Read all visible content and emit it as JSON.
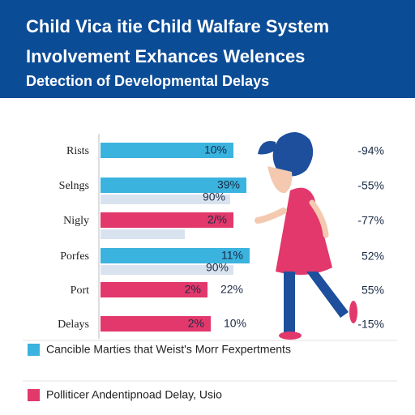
{
  "chart_data": {
    "type": "bar",
    "title": "Child Vica itie Child Walfare System",
    "subtitle": "Involvement Exhances Welences",
    "subtitle2": "Detection of Developmental Delays",
    "categories": [
      "Rists",
      "Selngs",
      "Nigly",
      "Porfes",
      "Port",
      "Delays"
    ],
    "xlim": [
      0,
      100
    ],
    "series": [
      {
        "values": [
          82,
          90,
          82,
          92,
          66,
          68
        ],
        "colors": [
          "#3bb3df",
          "#3bb3df",
          "#e2386c",
          "#3bb3df",
          "#e2386c",
          "#e2386c"
        ],
        "labels": [
          "10%",
          "39%",
          "2/%",
          "11%",
          "2%",
          "2%"
        ]
      },
      {
        "values": [
          null,
          80,
          52,
          82,
          null,
          null
        ],
        "color": "#d9e3f0",
        "labels": [
          null,
          "90%",
          null,
          "90%",
          "22%",
          "10%"
        ]
      }
    ],
    "side_labels": [
      "-94%",
      "-55%",
      "-77%",
      "52%",
      "55%",
      "-15%"
    ],
    "legend": [
      {
        "label": "Cancible Marties that Weist's Morr Fexpertments",
        "color": "#3bb3df"
      },
      {
        "label": "Polliticer Andentipnoad Delay, Usio",
        "color": "#e2386c"
      }
    ]
  }
}
